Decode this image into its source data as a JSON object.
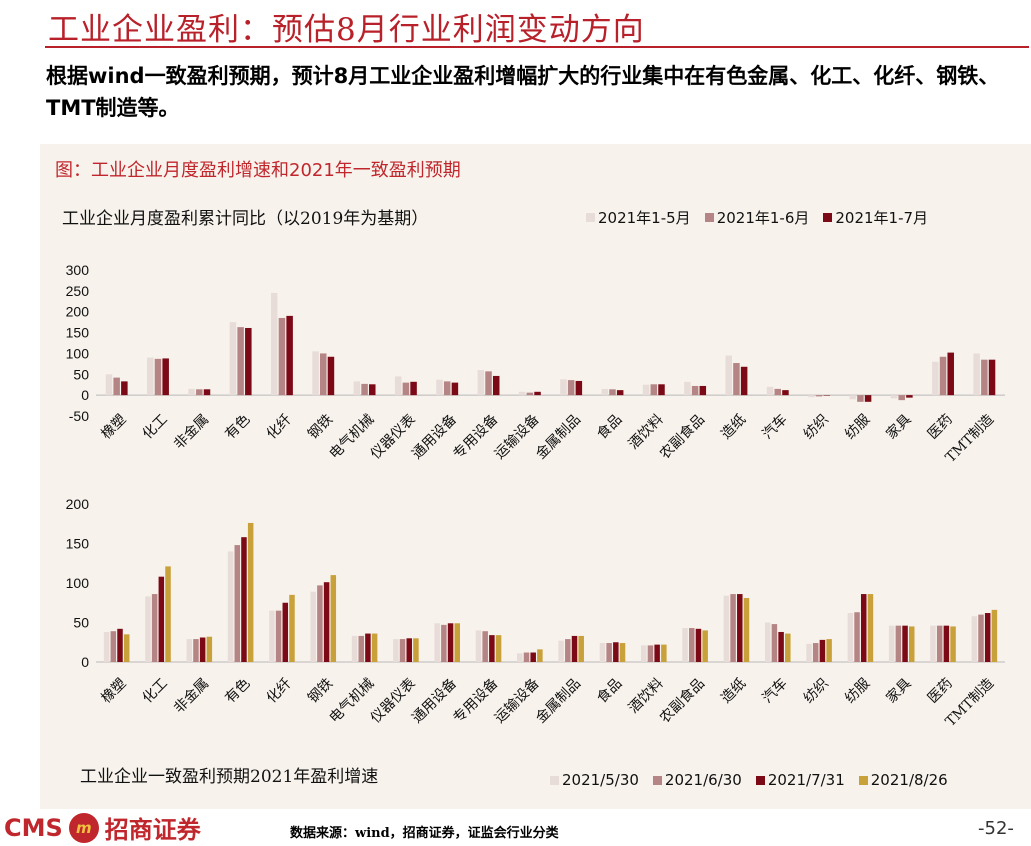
{
  "header": {
    "title": "工业企业盈利：预估8月行业利润变动方向",
    "subtitle": "根据wind一致盈利预期，预计8月工业企业盈利增幅扩大的行业集中在有色金属、化工、化纤、钢铁、TMT制造等。"
  },
  "figure": {
    "caption": "图：工业企业月度盈利增速和2021年一致盈利预期"
  },
  "footer": {
    "brand": "CMS",
    "brand_cn": "招商证券",
    "logo_glyph": "m",
    "source": "数据来源：wind，招商证券，证监会行业分类",
    "page": "-52-"
  },
  "chart_data": [
    {
      "type": "bar",
      "title": "工业企业月度盈利累计同比（以2019年为基期）",
      "categories": [
        "橡塑",
        "化工",
        "非金属",
        "有色",
        "化纤",
        "钢铁",
        "电气机械",
        "仪器仪表",
        "通用设备",
        "专用设备",
        "运输设备",
        "金属制品",
        "食品",
        "酒饮料",
        "农副食品",
        "造纸",
        "汽车",
        "纺织",
        "纺服",
        "家具",
        "医药",
        "TMT制造"
      ],
      "series": [
        {
          "name": "2021年1-5月",
          "color": "#e8dcd8",
          "values": [
            50,
            90,
            15,
            175,
            245,
            105,
            33,
            45,
            37,
            60,
            8,
            38,
            15,
            25,
            32,
            95,
            20,
            -5,
            -10,
            -8,
            80,
            100
          ]
        },
        {
          "name": "2021年1-6月",
          "color": "#b58585",
          "values": [
            42,
            87,
            14,
            163,
            185,
            100,
            27,
            30,
            33,
            57,
            6,
            36,
            14,
            26,
            22,
            77,
            15,
            -3,
            -16,
            -12,
            92,
            85
          ]
        },
        {
          "name": "2021年1-7月",
          "color": "#7b0a16",
          "values": [
            33,
            88,
            14,
            161,
            190,
            92,
            26,
            32,
            30,
            46,
            8,
            34,
            12,
            26,
            22,
            68,
            12,
            -1,
            -16,
            -6,
            102,
            85
          ]
        }
      ],
      "ylim": [
        -50,
        300
      ],
      "yticks": [
        -50,
        0,
        50,
        100,
        150,
        200,
        250,
        300
      ],
      "legend_position": "top-right"
    },
    {
      "type": "bar",
      "title": "工业企业一致盈利预期2021年盈利增速",
      "categories": [
        "橡塑",
        "化工",
        "非金属",
        "有色",
        "化纤",
        "钢铁",
        "电气机械",
        "仪器仪表",
        "通用设备",
        "专用设备",
        "运输设备",
        "金属制品",
        "食品",
        "酒饮料",
        "农副食品",
        "造纸",
        "汽车",
        "纺织",
        "纺服",
        "家具",
        "医药",
        "TMT制造"
      ],
      "series": [
        {
          "name": "2021/5/30",
          "color": "#e8dcd8",
          "values": [
            38,
            83,
            29,
            140,
            65,
            89,
            33,
            29,
            49,
            40,
            11,
            27,
            24,
            21,
            43,
            84,
            50,
            23,
            62,
            46,
            46,
            58
          ]
        },
        {
          "name": "2021/6/30",
          "color": "#b58585",
          "values": [
            39,
            86,
            29,
            148,
            65,
            97,
            33,
            29,
            47,
            39,
            12,
            29,
            24,
            21,
            43,
            86,
            48,
            24,
            63,
            46,
            46,
            60
          ]
        },
        {
          "name": "2021/7/31",
          "color": "#7b0a16",
          "values": [
            42,
            108,
            31,
            158,
            75,
            101,
            36,
            30,
            49,
            34,
            12,
            33,
            25,
            22,
            42,
            86,
            38,
            28,
            86,
            46,
            46,
            62
          ]
        },
        {
          "name": "2021/8/26",
          "color": "#c9a13a",
          "values": [
            35,
            121,
            32,
            176,
            85,
            110,
            36,
            30,
            49,
            34,
            16,
            33,
            24,
            22,
            40,
            81,
            36,
            29,
            86,
            45,
            45,
            66
          ]
        }
      ],
      "ylim": [
        0,
        200
      ],
      "yticks": [
        0,
        50,
        100,
        150,
        200
      ],
      "legend_position": "bottom-right"
    }
  ]
}
